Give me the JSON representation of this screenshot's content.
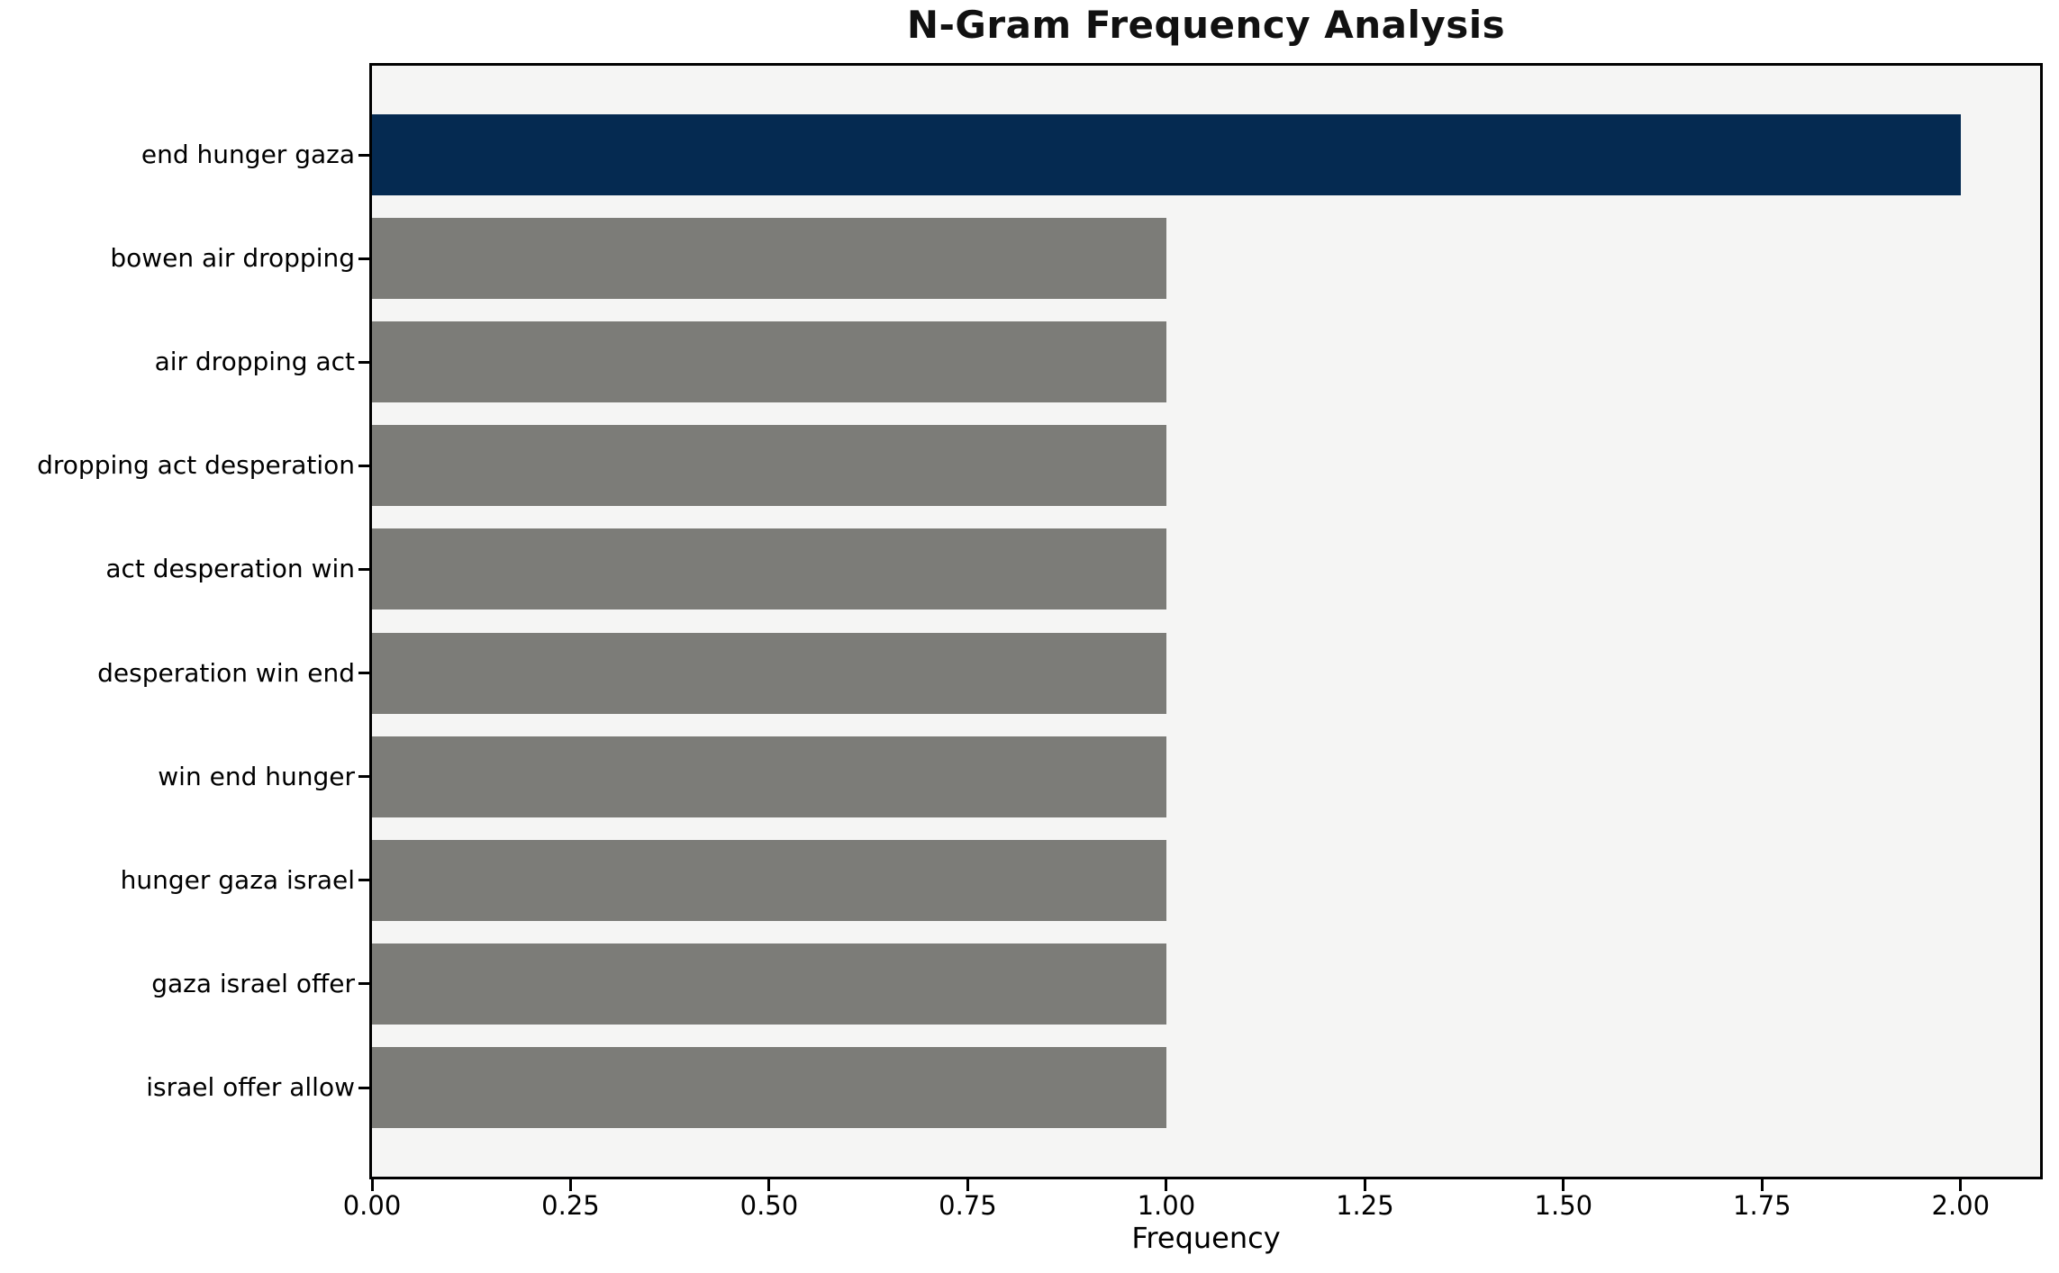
{
  "chart_data": {
    "type": "bar",
    "orientation": "horizontal",
    "title": "N-Gram Frequency Analysis",
    "xlabel": "Frequency",
    "ylabel": "",
    "categories": [
      "end hunger gaza",
      "bowen air dropping",
      "air dropping act",
      "dropping act desperation",
      "act desperation win",
      "desperation win end",
      "win end hunger",
      "hunger gaza israel",
      "gaza israel offer",
      "israel offer allow"
    ],
    "values": [
      2,
      1,
      1,
      1,
      1,
      1,
      1,
      1,
      1,
      1
    ],
    "bar_colors": [
      "#052A51",
      "#7C7C78",
      "#7C7C78",
      "#7C7C78",
      "#7C7C78",
      "#7C7C78",
      "#7C7C78",
      "#7C7C78",
      "#7C7C78",
      "#7C7C78"
    ],
    "xlim": [
      0,
      2.1
    ],
    "xticks": [
      "0.00",
      "0.25",
      "0.50",
      "0.75",
      "1.00",
      "1.25",
      "1.50",
      "1.75",
      "2.00"
    ],
    "grid": false,
    "legend_position": "none",
    "plot_background": "#F5F5F4",
    "figure_background": "#FFFFFF",
    "spine_color": "#000000",
    "text_color": "#000000"
  }
}
